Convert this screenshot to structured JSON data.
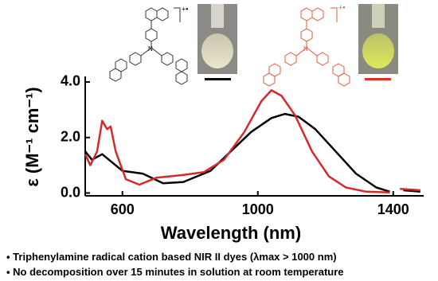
{
  "chart_data": {
    "type": "line",
    "xlabel": "Wavelength (nm)",
    "ylabel": "ε (M⁻¹ cm⁻¹)",
    "xlim": [
      490,
      1490
    ],
    "xticks": [
      600,
      1000,
      1400
    ],
    "ylim": [
      -0.1,
      4.2
    ],
    "yticks": [
      {
        "value": 0,
        "label": "0.0"
      },
      {
        "value": 2,
        "label": "2.0"
      },
      {
        "value": 4,
        "label": "4.0"
      }
    ],
    "series": [
      {
        "color": "#000000",
        "x": [
          490,
          510,
          540,
          560,
          600,
          660,
          720,
          780,
          860,
          920,
          980,
          1040,
          1080,
          1120,
          1170,
          1230,
          1290,
          1350,
          1390,
          1400,
          1430,
          1480
        ],
        "values": [
          1.5,
          1.2,
          1.4,
          1.2,
          0.8,
          0.7,
          0.35,
          0.4,
          0.8,
          1.5,
          2.2,
          2.7,
          2.85,
          2.75,
          2.3,
          1.5,
          0.7,
          0.2,
          0.05,
          null,
          0.1,
          0.05
        ]
      },
      {
        "color": "#d42a2a",
        "x": [
          490,
          505,
          525,
          540,
          555,
          565,
          580,
          610,
          650,
          700,
          780,
          840,
          900,
          960,
          1010,
          1040,
          1070,
          1110,
          1160,
          1210,
          1260,
          1320,
          1390,
          1400,
          1420,
          1480
        ],
        "values": [
          1.4,
          1.0,
          1.5,
          2.6,
          2.3,
          2.4,
          1.5,
          0.5,
          0.3,
          0.55,
          0.65,
          0.75,
          1.2,
          2.2,
          3.3,
          3.7,
          3.5,
          2.8,
          1.5,
          0.6,
          0.2,
          0.05,
          0.02,
          null,
          0.15,
          0.1
        ]
      }
    ]
  },
  "structures": [
    {
      "charge": "+•"
    },
    {
      "charge": "+•"
    }
  ],
  "notes": [
    "Triphenylamine radical cation based NIR II dyes (λmax > 1000 nm)",
    "No decomposition over 15 minutes in solution at room temperature"
  ]
}
